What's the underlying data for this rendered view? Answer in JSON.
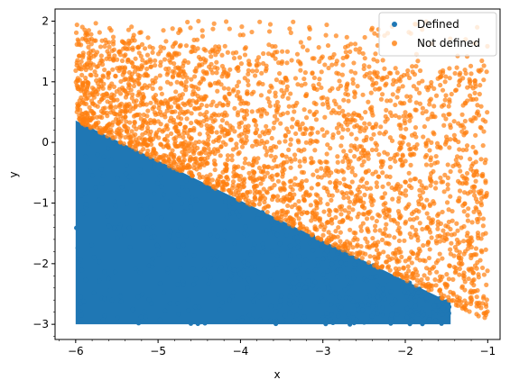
{
  "chart_data": {
    "type": "scatter",
    "title": "",
    "xlabel": "x",
    "ylabel": "y",
    "xlim": [
      -6.25,
      -0.85
    ],
    "ylim": [
      -3.25,
      2.2
    ],
    "x_ticks": [
      -6,
      -5,
      -4,
      -3,
      -2,
      -1
    ],
    "x_tick_labels": [
      "−6",
      "−5",
      "−4",
      "−3",
      "−2",
      "−1"
    ],
    "y_ticks": [
      -3,
      -2,
      -1,
      0,
      1,
      2
    ],
    "y_tick_labels": [
      "−3",
      "−2",
      "−1",
      "0",
      "1",
      "2"
    ],
    "minor_ticks": true,
    "grid": false,
    "legend": {
      "placement": "top-right"
    },
    "boundary": {
      "description": "Points above the line y = -0.66*x - 3.6 (approx) are 'Not defined'",
      "slope": -0.66,
      "intercept": -3.6
    },
    "series": [
      {
        "name": "Defined",
        "color": "#1f77b4",
        "region": "x in [-6, -1.4], y in [-3, boundary]",
        "opacity": 1.0
      },
      {
        "name": "Not defined",
        "color": "#ff7f0e",
        "region": "x in [-6, -1], y in [boundary, 2]",
        "opacity": 0.7
      }
    ]
  }
}
